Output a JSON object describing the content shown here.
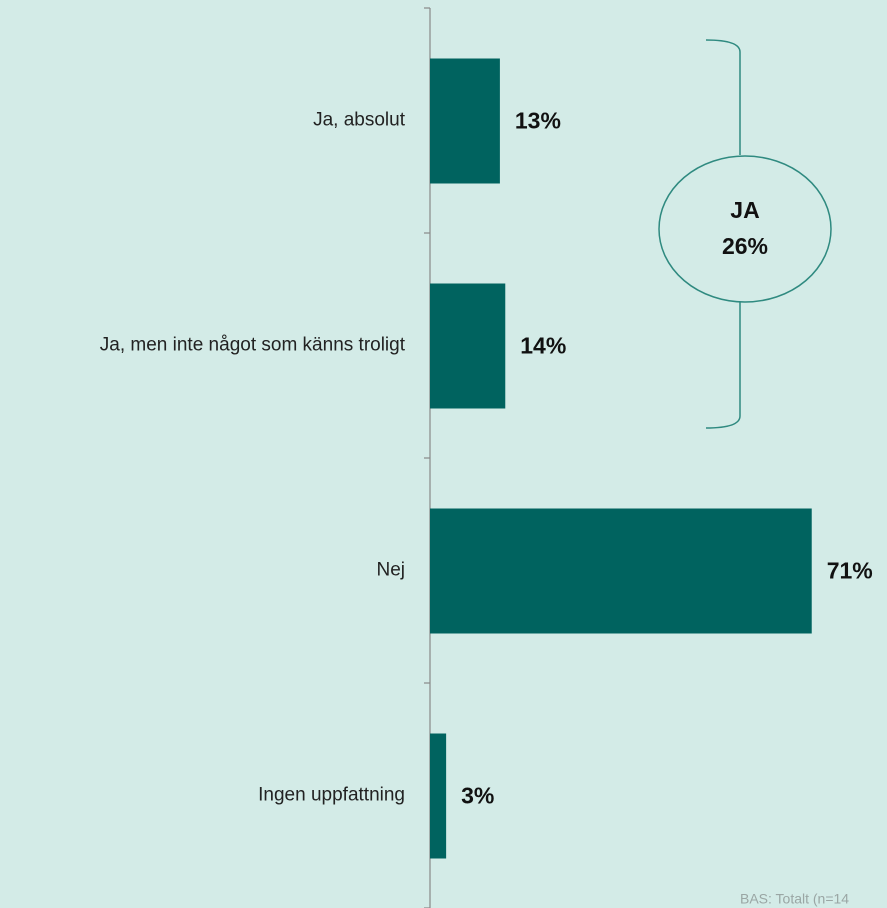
{
  "chart_data": {
    "type": "bar",
    "orientation": "horizontal",
    "categories": [
      "Ja, absolut",
      "Ja, men inte något som känns troligt",
      "Nej",
      "Ingen uppfattning"
    ],
    "values": [
      13,
      14,
      71,
      3
    ],
    "value_labels": [
      "13%",
      "14%",
      "71%",
      "3%"
    ],
    "color": "#00635f",
    "xlim": [
      0,
      85
    ],
    "annotation": {
      "title": "JA",
      "label": "26%"
    },
    "footnote": "BAS: Totalt (n=14"
  }
}
